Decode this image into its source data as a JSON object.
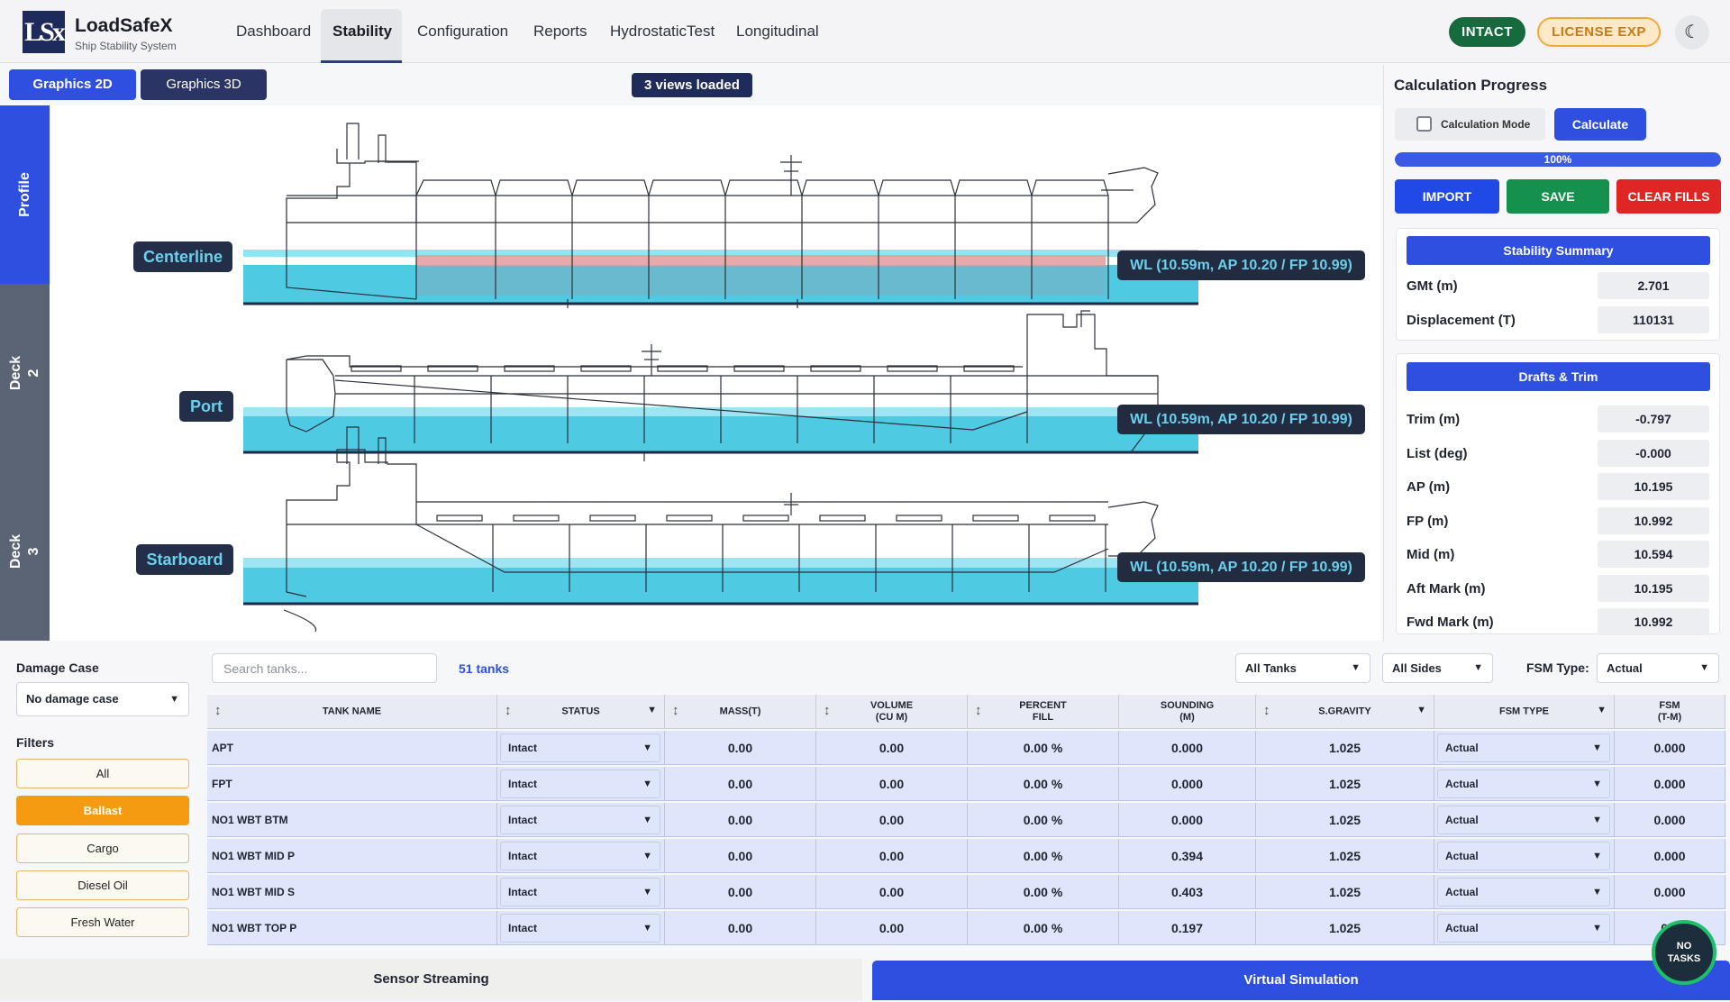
{
  "app": {
    "logo": "LSx",
    "title": "LoadSafeX",
    "subtitle": "Ship Stability System"
  },
  "nav": [
    {
      "label": "Dashboard"
    },
    {
      "label": "Stability",
      "active": true
    },
    {
      "label": "Configuration"
    },
    {
      "label": "Reports"
    },
    {
      "label": "HydrostaticTest"
    },
    {
      "label": "Longitudinal"
    }
  ],
  "status": {
    "intact": "INTACT",
    "license": "LICENSE EXP",
    "theme_icon": "moon-icon"
  },
  "graphics": {
    "tab_2d": "Graphics 2D",
    "tab_3d": "Graphics 3D",
    "views_badge": "3 views loaded"
  },
  "side_tabs": {
    "profile": "Profile",
    "deck2": "Deck 2",
    "deck3": "Deck 3"
  },
  "views": {
    "centerline": "Centerline",
    "port": "Port",
    "starboard": "Starboard",
    "wl_centerline": "WL (10.59m, AP 10.20 / FP 10.99)",
    "wl_port": "WL (10.59m, AP 10.20 / FP 10.99)",
    "wl_starboard": "WL (10.59m, AP 10.20 / FP 10.99)"
  },
  "calc": {
    "title": "Calculation Progress",
    "mode_label": "Calculation Mode",
    "calculate": "Calculate",
    "progress": 100,
    "progress_text": "100%",
    "import": "IMPORT",
    "save": "SAVE",
    "clear": "CLEAR FILLS"
  },
  "stability_summary": {
    "title": "Stability Summary",
    "gmt_label": "GMt (m)",
    "gmt": "2.701",
    "disp_label": "Displacement (T)",
    "disp": "110131"
  },
  "drafts": {
    "title": "Drafts & Trim",
    "rows": [
      {
        "label": "Trim (m)",
        "value": "-0.797"
      },
      {
        "label": "List (deg)",
        "value": "-0.000"
      },
      {
        "label": "AP (m)",
        "value": "10.195"
      },
      {
        "label": "FP (m)",
        "value": "10.992"
      },
      {
        "label": "Mid (m)",
        "value": "10.594"
      },
      {
        "label": "Aft Mark (m)",
        "value": "10.195"
      },
      {
        "label": "Fwd Mark (m)",
        "value": "10.992"
      }
    ]
  },
  "filters_panel": {
    "damage_label": "Damage Case",
    "damage_value": "No damage case",
    "filters_label": "Filters",
    "buttons": [
      "All",
      "Ballast",
      "Cargo",
      "Diesel Oil",
      "Fresh Water"
    ],
    "active": "Ballast"
  },
  "table_controls": {
    "search_placeholder": "Search tanks...",
    "tank_count": "51 tanks",
    "all_tanks": "All Tanks",
    "all_sides": "All Sides",
    "fsm_type_label": "FSM Type:",
    "fsm_type_value": "Actual"
  },
  "table": {
    "headers": [
      "TANK NAME",
      "STATUS",
      "MASS(T)",
      "VOLUME\n(CU M)",
      "PERCENT\nFILL",
      "SOUNDING\n(M)",
      "S.GRAVITY",
      "FSM TYPE",
      "FSM\n(T-M)"
    ],
    "rows": [
      [
        "APT",
        "Intact",
        "0.00",
        "0.00",
        "0.00 %",
        "0.000",
        "1.025",
        "Actual",
        "0.000"
      ],
      [
        "FPT",
        "Intact",
        "0.00",
        "0.00",
        "0.00 %",
        "0.000",
        "1.025",
        "Actual",
        "0.000"
      ],
      [
        "NO1 WBT BTM",
        "Intact",
        "0.00",
        "0.00",
        "0.00 %",
        "0.000",
        "1.025",
        "Actual",
        "0.000"
      ],
      [
        "NO1 WBT MID P",
        "Intact",
        "0.00",
        "0.00",
        "0.00 %",
        "0.394",
        "1.025",
        "Actual",
        "0.000"
      ],
      [
        "NO1 WBT MID S",
        "Intact",
        "0.00",
        "0.00",
        "0.00 %",
        "0.403",
        "1.025",
        "Actual",
        "0.000"
      ],
      [
        "NO1 WBT TOP P",
        "Intact",
        "0.00",
        "0.00",
        "0.00 %",
        "0.197",
        "1.025",
        "Actual",
        "0.0"
      ]
    ]
  },
  "bottom": {
    "sensor": "Sensor Streaming",
    "virtual": "Virtual Simulation",
    "no_tasks": "NO\nTASKS"
  },
  "colors": {
    "accent": "#2e4fe0",
    "water": "#3cc4e0",
    "cargo_fill": "#e8a0a0",
    "ballast": "#f59b12"
  }
}
